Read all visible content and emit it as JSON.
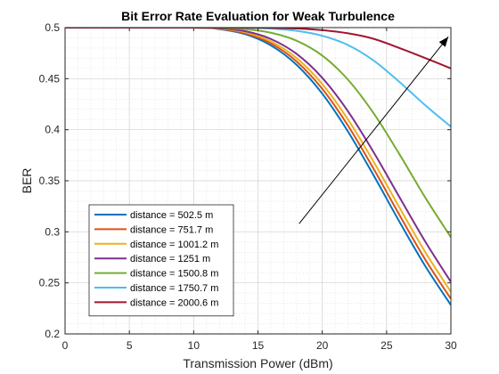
{
  "chart_data": {
    "type": "line",
    "title": "Bit Error Rate Evaluation for Weak Turbulence",
    "xlabel": "Transmission Power (dBm)",
    "ylabel": "BER",
    "xlim": [
      0,
      30
    ],
    "ylim": [
      0.2,
      0.5
    ],
    "xticks": [
      0,
      5,
      10,
      15,
      20,
      25,
      30
    ],
    "yticks": [
      0.2,
      0.25,
      0.3,
      0.35,
      0.4,
      0.45,
      0.5
    ],
    "xtick_labels": [
      "0",
      "5",
      "10",
      "15",
      "20",
      "25",
      "30"
    ],
    "ytick_labels": [
      "0.2",
      "0.25",
      "0.3",
      "0.35",
      "0.4",
      "0.45",
      "0.5"
    ],
    "grid": true,
    "minor_grid": true,
    "legend_position": "bottom-left",
    "x": [
      0,
      10,
      12,
      14,
      16,
      18,
      20,
      22,
      24,
      26,
      28,
      30
    ],
    "series": [
      {
        "name": "distance = 502.5 m",
        "color": "#0072BD",
        "values": [
          0.5,
          0.5,
          0.4985,
          0.4936,
          0.4826,
          0.4636,
          0.4353,
          0.3982,
          0.3551,
          0.3099,
          0.2666,
          0.2283
        ]
      },
      {
        "name": "distance = 751.7 m",
        "color": "#D95319",
        "values": [
          0.5,
          0.5,
          0.4988,
          0.4945,
          0.4846,
          0.4669,
          0.44,
          0.404,
          0.3615,
          0.3165,
          0.273,
          0.2344
        ]
      },
      {
        "name": "distance = 1001.2 m",
        "color": "#EDB120",
        "values": [
          0.5,
          0.5,
          0.499,
          0.4955,
          0.4866,
          0.4702,
          0.4447,
          0.41,
          0.3685,
          0.3238,
          0.2803,
          0.2412
        ]
      },
      {
        "name": "distance = 1251 m",
        "color": "#7E2F8E",
        "values": [
          0.5,
          0.5,
          0.4993,
          0.4965,
          0.4889,
          0.4743,
          0.4508,
          0.418,
          0.3778,
          0.334,
          0.2906,
          0.251
        ]
      },
      {
        "name": "distance = 1500.8 m",
        "color": "#77AC30",
        "values": [
          0.5,
          0.5,
          0.4997,
          0.4985,
          0.495,
          0.4872,
          0.4726,
          0.449,
          0.416,
          0.376,
          0.3337,
          0.2947
        ]
      },
      {
        "name": "distance = 1750.7 m",
        "color": "#4DBEEE",
        "values": [
          0.5,
          0.5,
          0.5,
          0.4998,
          0.499,
          0.4968,
          0.492,
          0.4829,
          0.4677,
          0.4468,
          0.424,
          0.403
        ]
      },
      {
        "name": "distance = 2000.6 m",
        "color": "#A2142F",
        "values": [
          0.5,
          0.5,
          0.5,
          0.5,
          0.4998,
          0.4991,
          0.4975,
          0.4944,
          0.489,
          0.48,
          0.4702,
          0.46
        ]
      }
    ],
    "annotations": [
      {
        "type": "arrow",
        "from": [
          18.2,
          0.308
        ],
        "to": [
          29.8,
          0.491
        ]
      }
    ]
  }
}
